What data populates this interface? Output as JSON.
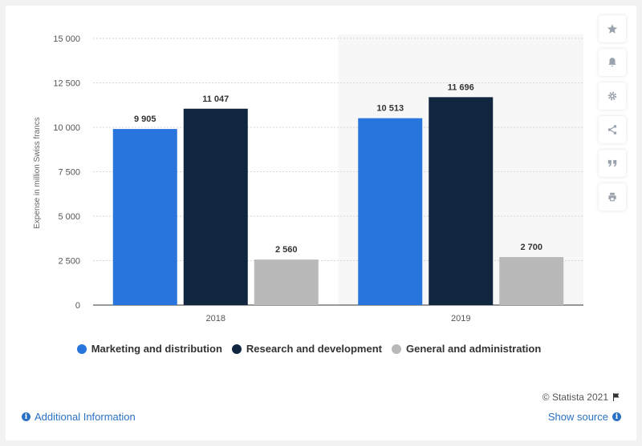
{
  "chart_data": {
    "type": "bar",
    "categories": [
      "2018",
      "2019"
    ],
    "series": [
      {
        "name": "Marketing and distribution",
        "values": [
          9905,
          10513
        ],
        "labels": [
          "9 905",
          "10 513"
        ],
        "color": "#2876dd"
      },
      {
        "name": "Research and development",
        "values": [
          11047,
          11696
        ],
        "labels": [
          "11 047",
          "11 696"
        ],
        "color": "#10263f"
      },
      {
        "name": "General and administration",
        "values": [
          2560,
          2700
        ],
        "labels": [
          "2 560",
          "2 700"
        ],
        "color": "#b9b9b9"
      }
    ],
    "yticks": [
      0,
      2500,
      5000,
      7500,
      10000,
      12500,
      15000
    ],
    "ytick_labels": [
      "0",
      "2 500",
      "5 000",
      "7 500",
      "10 000",
      "12 500",
      "15 000"
    ],
    "ylabel": "Expense in million Swiss francs",
    "xlabel": "",
    "ylim": [
      0,
      15000
    ],
    "grid": true,
    "legend": "bottom"
  },
  "credit": "© Statista 2021",
  "footer": {
    "additional_info": "Additional Information",
    "show_source": "Show source"
  },
  "toolbar_icons": [
    "star-icon",
    "bell-icon",
    "gear-icon",
    "share-icon",
    "quote-icon",
    "print-icon"
  ],
  "colors": {
    "accent": "#2a71c4",
    "highlight_band": "#f7f7f7"
  }
}
